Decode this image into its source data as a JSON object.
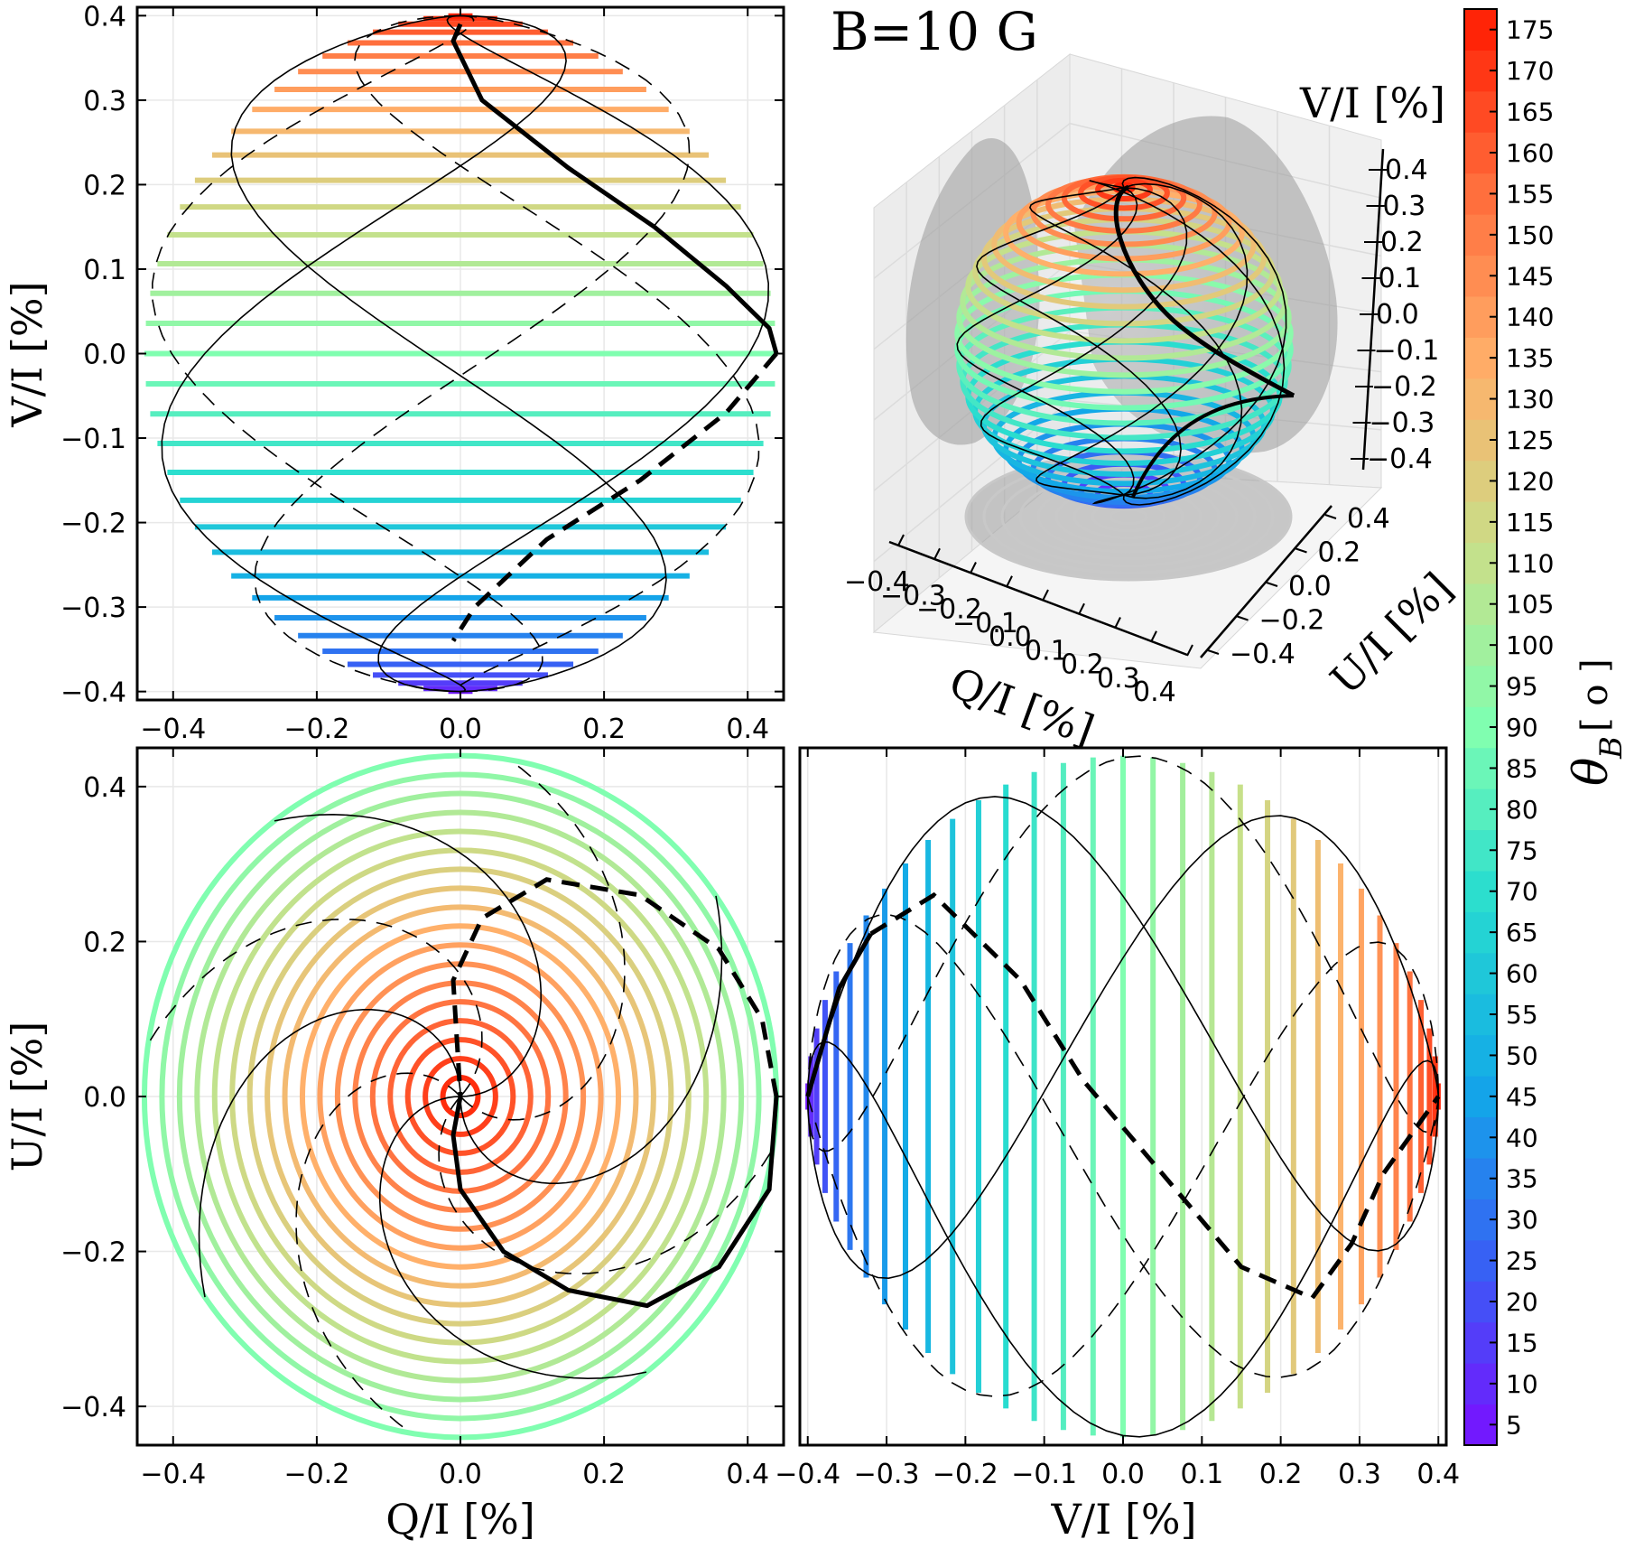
{
  "figure": {
    "title": "B=10 G"
  },
  "chart_data": [
    {
      "panel": "top-left",
      "type": "line",
      "description_x": "Q/I [%]",
      "xlabel": "",
      "ylabel": "V/I [%]",
      "xlim": [
        -0.45,
        0.45
      ],
      "ylim": [
        -0.41,
        0.41
      ],
      "xticks": [
        "−0.4",
        "−0.2",
        "0.0",
        "0.2",
        "0.4"
      ],
      "yticks": [
        "0.4",
        "0.3",
        "0.2",
        "0.1",
        "0.0",
        "−0.1",
        "−0.2",
        "−0.3",
        "−0.4"
      ],
      "series": [
        {
          "name": "theta_B contours (horizontal bands)",
          "style": "colored",
          "levels_deg": [
            5,
            175
          ]
        },
        {
          "name": "highlighted path (solid)",
          "x": [
            0.0,
            -0.01,
            0.03,
            0.15,
            0.27,
            0.37,
            0.43,
            0.44
          ],
          "y": [
            0.39,
            0.37,
            0.3,
            0.22,
            0.15,
            0.08,
            0.03,
            0.0
          ]
        },
        {
          "name": "highlighted path (dashed)",
          "x": [
            0.44,
            0.37,
            0.25,
            0.12,
            0.02,
            -0.01
          ],
          "y": [
            0.0,
            -0.07,
            -0.15,
            -0.22,
            -0.3,
            -0.34
          ]
        }
      ]
    },
    {
      "panel": "top-right",
      "type": "scatter",
      "description": "3D Poincare sphere view",
      "xlabel": "Q/I [%]",
      "ylabel": "U/I [%]",
      "zlabel": "V/I [%]",
      "xticks": [
        "−0.4",
        "−0.3",
        "−0.2",
        "−0.1",
        "0.0",
        "0.1",
        "0.2",
        "0.3",
        "0.4"
      ],
      "yticks": [
        "−0.4",
        "−0.2",
        "0.0",
        "0.2",
        "0.4"
      ],
      "zticks": [
        "0.4",
        "0.3",
        "0.2",
        "0.1",
        "0.0",
        "−0.1",
        "−0.2",
        "−0.3",
        "−0.4"
      ]
    },
    {
      "panel": "bottom-left",
      "type": "line",
      "xlabel": "Q/I [%]",
      "ylabel": "U/I [%]",
      "xlim": [
        -0.45,
        0.45
      ],
      "ylim": [
        -0.45,
        0.45
      ],
      "xticks": [
        "−0.4",
        "−0.2",
        "0.0",
        "0.2",
        "0.4"
      ],
      "yticks": [
        "0.4",
        "0.2",
        "0.0",
        "−0.2",
        "−0.4"
      ],
      "series": [
        {
          "name": "theta_B contours (concentric rings)",
          "style": "colored"
        },
        {
          "name": "highlighted path (solid)",
          "x": [
            0.0,
            -0.01,
            0.0,
            0.06,
            0.15,
            0.26,
            0.36,
            0.43,
            0.44
          ],
          "y": [
            0.0,
            -0.05,
            -0.12,
            -0.2,
            -0.25,
            -0.27,
            -0.22,
            -0.12,
            0.0
          ]
        },
        {
          "name": "highlighted path (dashed)",
          "x": [
            0.44,
            0.42,
            0.36,
            0.25,
            0.12,
            0.03,
            -0.01,
            0.0
          ],
          "y": [
            0.0,
            0.1,
            0.19,
            0.26,
            0.28,
            0.23,
            0.15,
            0.0
          ]
        }
      ]
    },
    {
      "panel": "bottom-right",
      "type": "line",
      "xlabel": "V/I [%]",
      "ylabel": "",
      "xlim": [
        -0.41,
        0.41
      ],
      "ylim": [
        -0.45,
        0.45
      ],
      "xticks": [
        "−0.4",
        "−0.3",
        "−0.2",
        "−0.1",
        "0.0",
        "0.1",
        "0.2",
        "0.3",
        "0.4"
      ],
      "series": [
        {
          "name": "theta_B contours (vertical bands)",
          "style": "colored"
        },
        {
          "name": "highlighted path (solid)",
          "x": [
            -0.4,
            -0.36,
            -0.32
          ],
          "y": [
            0.0,
            0.14,
            0.21
          ]
        },
        {
          "name": "highlighted path (dashed)",
          "x": [
            -0.32,
            -0.24,
            -0.13,
            -0.05,
            0.05,
            0.15,
            0.24,
            0.29,
            0.33,
            0.4
          ],
          "y": [
            0.21,
            0.26,
            0.15,
            0.02,
            -0.1,
            -0.22,
            -0.26,
            -0.19,
            -0.1,
            0.0
          ]
        }
      ]
    }
  ],
  "colorbar": {
    "label": "θB [ o ]",
    "label_main": "θ",
    "label_sub": "B",
    "label_units": "[ o ]",
    "min": 2.5,
    "max": 177.5,
    "ticks": [
      "175",
      "170",
      "165",
      "160",
      "155",
      "150",
      "145",
      "140",
      "135",
      "130",
      "125",
      "120",
      "115",
      "110",
      "105",
      "100",
      "95",
      "90",
      "85",
      "80",
      "75",
      "70",
      "65",
      "60",
      "55",
      "50",
      "45",
      "40",
      "35",
      "30",
      "25",
      "20",
      "15",
      "10",
      "5"
    ]
  },
  "colors": {
    "low": "#7a10ff",
    "high": "#ff1a00",
    "highlight": "#000000"
  }
}
